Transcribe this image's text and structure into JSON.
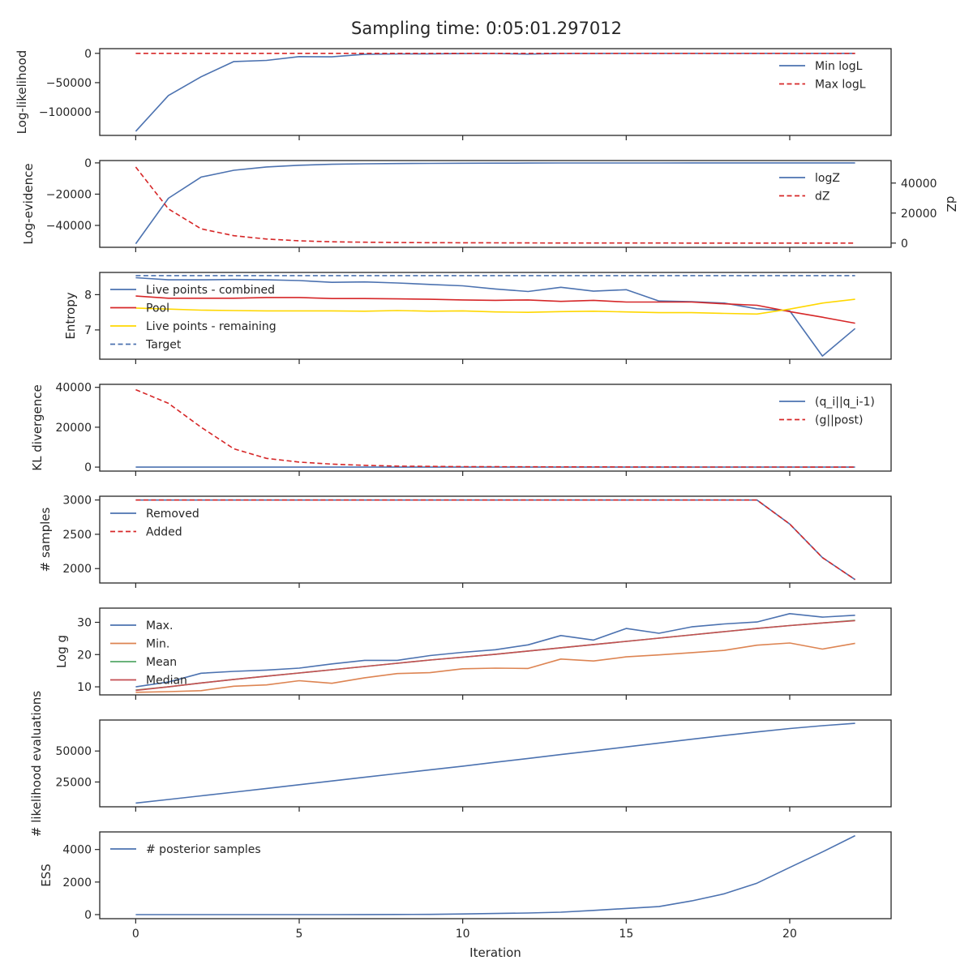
{
  "figure": {
    "title": "Sampling time: 0:05:01.297012",
    "xlabel": "Iteration",
    "x_ticks": [
      0,
      5,
      10,
      15,
      20
    ],
    "x_range": [
      -1.1,
      23.1
    ]
  },
  "colors": {
    "blue": "#4c72b0",
    "red": "#d62728",
    "orange": "#dd8452",
    "green": "#55a868",
    "median_red": "#c44e52",
    "yellow": "#ffd700",
    "axis": "#262626"
  },
  "chart_data": [
    {
      "type": "line",
      "ylabel": "Log-likelihood",
      "ylim": [
        -140000,
        8000
      ],
      "yticks": [
        0,
        -50000,
        -100000
      ],
      "legend": "top-right",
      "x": [
        0,
        1,
        2,
        3,
        4,
        5,
        6,
        7,
        8,
        9,
        10,
        11,
        12,
        13,
        14,
        15,
        16,
        17,
        18,
        19,
        20,
        21,
        22
      ],
      "series": [
        {
          "name": "Min logL",
          "color": "blue",
          "dash": false,
          "values": [
            -133000,
            -72000,
            -40000,
            -14000,
            -12000,
            -5500,
            -6000,
            -1500,
            -1000,
            -800,
            -500,
            -300,
            -1200,
            -200,
            -100,
            -80,
            -60,
            -50,
            -40,
            -30,
            -20,
            -10,
            -5
          ]
        },
        {
          "name": "Max logL",
          "color": "red",
          "dash": true,
          "values": [
            0,
            0,
            0,
            0,
            0,
            0,
            0,
            0,
            0,
            0,
            0,
            0,
            0,
            0,
            0,
            0,
            0,
            0,
            0,
            0,
            0,
            0,
            0
          ]
        }
      ]
    },
    {
      "type": "line",
      "ylabel": "Log-evidence",
      "ylabel_right": "dZ",
      "ylim": [
        -54000,
        1500
      ],
      "yticks": [
        0,
        -20000,
        -40000
      ],
      "ylim_right": [
        -2800,
        55000
      ],
      "yticks_right": [
        0,
        20000,
        40000
      ],
      "legend": "top-right",
      "x": [
        0,
        1,
        2,
        3,
        4,
        5,
        6,
        7,
        8,
        9,
        10,
        11,
        12,
        13,
        14,
        15,
        16,
        17,
        18,
        19,
        20,
        21,
        22
      ],
      "series": [
        {
          "name": "logZ",
          "color": "blue",
          "dash": false,
          "axis": "left",
          "values": [
            -51700,
            -22600,
            -9100,
            -4700,
            -2600,
            -1500,
            -900,
            -600,
            -400,
            -300,
            -200,
            -150,
            -100,
            -80,
            -60,
            -50,
            -40,
            -30,
            -20,
            -10,
            -8,
            -5,
            -3
          ]
        },
        {
          "name": "dZ",
          "color": "red",
          "dash": true,
          "axis": "right",
          "values": [
            50700,
            22800,
            9500,
            4900,
            2700,
            1500,
            900,
            600,
            400,
            300,
            200,
            150,
            100,
            80,
            60,
            50,
            40,
            30,
            20,
            10,
            8,
            5,
            3
          ]
        }
      ]
    },
    {
      "type": "line",
      "ylabel": "Entropy",
      "ylim": [
        6.17,
        8.63
      ],
      "yticks": [
        7,
        8
      ],
      "legend": "top-left",
      "x": [
        0,
        1,
        2,
        3,
        4,
        5,
        6,
        7,
        8,
        9,
        10,
        11,
        12,
        13,
        14,
        15,
        16,
        17,
        18,
        19,
        20,
        21,
        22
      ],
      "series": [
        {
          "name": "Live points - combined",
          "color": "blue",
          "dash": false,
          "values": [
            8.48,
            8.42,
            8.42,
            8.43,
            8.42,
            8.4,
            8.35,
            8.36,
            8.33,
            8.29,
            8.25,
            8.16,
            8.09,
            8.21,
            8.1,
            8.14,
            7.82,
            7.8,
            7.76,
            7.6,
            7.54,
            6.26,
            7.04
          ]
        },
        {
          "name": "Pool",
          "color": "red",
          "dash": false,
          "values": [
            7.96,
            7.9,
            7.9,
            7.9,
            7.92,
            7.92,
            7.89,
            7.89,
            7.88,
            7.87,
            7.85,
            7.84,
            7.85,
            7.81,
            7.84,
            7.79,
            7.79,
            7.79,
            7.74,
            7.7,
            7.52,
            7.36,
            7.19
          ]
        },
        {
          "name": "Live points - remaining",
          "color": "yellow",
          "dash": false,
          "values": [
            7.62,
            7.59,
            7.56,
            7.55,
            7.54,
            7.54,
            7.54,
            7.53,
            7.55,
            7.53,
            7.54,
            7.51,
            7.5,
            7.52,
            7.53,
            7.51,
            7.49,
            7.49,
            7.47,
            7.45,
            7.59,
            7.76,
            7.87
          ]
        },
        {
          "name": "Target",
          "color": "blue",
          "dash": true,
          "values": [
            8.54,
            8.54,
            8.54,
            8.54,
            8.54,
            8.54,
            8.54,
            8.54,
            8.54,
            8.54,
            8.54,
            8.54,
            8.54,
            8.54,
            8.54,
            8.54,
            8.54,
            8.54,
            8.54,
            8.54,
            8.54,
            8.54,
            8.54
          ]
        }
      ]
    },
    {
      "type": "line",
      "ylabel": "KL divergence",
      "ylim": [
        -2000,
        41500
      ],
      "yticks": [
        0,
        20000,
        40000
      ],
      "legend": "top-right",
      "x": [
        0,
        1,
        2,
        3,
        4,
        5,
        6,
        7,
        8,
        9,
        10,
        11,
        12,
        13,
        14,
        15,
        16,
        17,
        18,
        19,
        20,
        21,
        22
      ],
      "series": [
        {
          "name": "(q_i||q_i-1)",
          "color": "blue",
          "dash": false,
          "values": [
            0,
            0,
            0,
            0,
            0,
            0,
            0,
            0,
            0,
            0,
            0,
            0,
            0,
            0,
            0,
            0,
            0,
            0,
            0,
            0,
            0,
            0,
            0
          ]
        },
        {
          "name": "(g||post)",
          "color": "red",
          "dash": true,
          "values": [
            38800,
            32000,
            20000,
            9200,
            4400,
            2500,
            1500,
            900,
            500,
            350,
            250,
            200,
            150,
            120,
            100,
            80,
            60,
            50,
            40,
            30,
            20,
            10,
            5
          ]
        }
      ]
    },
    {
      "type": "line",
      "ylabel": "# samples",
      "ylim": [
        1790,
        3055
      ],
      "yticks": [
        2000,
        2500,
        3000
      ],
      "legend": "top-left",
      "x": [
        0,
        1,
        2,
        3,
        4,
        5,
        6,
        7,
        8,
        9,
        10,
        11,
        12,
        13,
        14,
        15,
        16,
        17,
        18,
        19,
        20,
        21,
        22
      ],
      "series": [
        {
          "name": "Removed",
          "color": "blue",
          "dash": false,
          "values": [
            3000,
            3000,
            3000,
            3000,
            3000,
            3000,
            3000,
            3000,
            3000,
            3000,
            3000,
            3000,
            3000,
            3000,
            3000,
            3000,
            3000,
            3000,
            3000,
            3000,
            2650,
            2160,
            1840
          ]
        },
        {
          "name": "Added",
          "color": "red",
          "dash": true,
          "values": [
            3000,
            3000,
            3000,
            3000,
            3000,
            3000,
            3000,
            3000,
            3000,
            3000,
            3000,
            3000,
            3000,
            3000,
            3000,
            3000,
            3000,
            3000,
            3000,
            3000,
            2650,
            2160,
            1840
          ]
        }
      ]
    },
    {
      "type": "line",
      "ylabel": "Log g",
      "ylim": [
        7.5,
        34.4
      ],
      "yticks": [
        10,
        20,
        30
      ],
      "legend": "top-left",
      "x": [
        0,
        1,
        2,
        3,
        4,
        5,
        6,
        7,
        8,
        9,
        10,
        11,
        12,
        13,
        14,
        15,
        16,
        17,
        18,
        19,
        20,
        21,
        22
      ],
      "series": [
        {
          "name": "Max.",
          "color": "blue",
          "dash": false,
          "values": [
            10.0,
            11.5,
            14.2,
            14.8,
            15.2,
            15.8,
            17.1,
            18.2,
            18.2,
            19.7,
            20.7,
            21.5,
            23.0,
            25.9,
            24.5,
            28.1,
            26.6,
            28.6,
            29.5,
            30.1,
            32.7,
            31.6,
            32.2
          ]
        },
        {
          "name": "Min.",
          "color": "orange",
          "dash": false,
          "values": [
            8.3,
            8.5,
            8.8,
            10.2,
            10.6,
            11.9,
            11.1,
            12.8,
            14.1,
            14.4,
            15.6,
            15.8,
            15.7,
            18.6,
            18.0,
            19.3,
            19.9,
            20.6,
            21.3,
            22.9,
            23.6,
            21.7,
            23.5
          ]
        },
        {
          "name": "Mean",
          "color": "green",
          "dash": false,
          "values": [
            9.0,
            10.0,
            11.2,
            12.3,
            13.3,
            14.3,
            15.3,
            16.3,
            17.3,
            18.3,
            19.2,
            20.1,
            21.1,
            22.1,
            23.1,
            24.1,
            25.1,
            26.1,
            27.1,
            28.1,
            29.0,
            29.8,
            30.6
          ]
        },
        {
          "name": "Median",
          "color": "median_red",
          "dash": false,
          "values": [
            8.9,
            10.0,
            11.2,
            12.3,
            13.3,
            14.3,
            15.3,
            16.3,
            17.3,
            18.3,
            19.2,
            20.1,
            21.1,
            22.1,
            23.1,
            24.1,
            25.1,
            26.1,
            27.1,
            28.1,
            29.0,
            29.8,
            30.5
          ]
        }
      ]
    },
    {
      "type": "line",
      "ylabel": "# likelihood evaluations",
      "ylim": [
        5000,
        75000
      ],
      "yticks": [
        25000,
        50000
      ],
      "x": [
        0,
        1,
        2,
        3,
        4,
        5,
        6,
        7,
        8,
        9,
        10,
        11,
        12,
        13,
        14,
        15,
        16,
        17,
        18,
        19,
        20,
        21,
        22
      ],
      "series": [
        {
          "name": "",
          "color": "blue",
          "dash": false,
          "values": [
            8000,
            10900,
            13800,
            16800,
            19800,
            22800,
            25800,
            28800,
            31800,
            34800,
            37800,
            40900,
            44000,
            47100,
            50200,
            53300,
            56400,
            59500,
            62500,
            65400,
            68100,
            70400,
            72300
          ]
        }
      ]
    },
    {
      "type": "line",
      "ylabel": "ESS",
      "ylim": [
        -250,
        5080
      ],
      "yticks": [
        0,
        2000,
        4000
      ],
      "legend": "top-left",
      "x": [
        0,
        1,
        2,
        3,
        4,
        5,
        6,
        7,
        8,
        9,
        10,
        11,
        12,
        13,
        14,
        15,
        16,
        17,
        18,
        19,
        20,
        21,
        22
      ],
      "series": [
        {
          "name": "# posterior samples",
          "color": "blue",
          "dash": false,
          "values": [
            0,
            0,
            0,
            0,
            0,
            0,
            0,
            3,
            8,
            15,
            40,
            70,
            100,
            150,
            260,
            380,
            490,
            840,
            1280,
            1930,
            2900,
            3850,
            4850
          ]
        }
      ]
    }
  ]
}
